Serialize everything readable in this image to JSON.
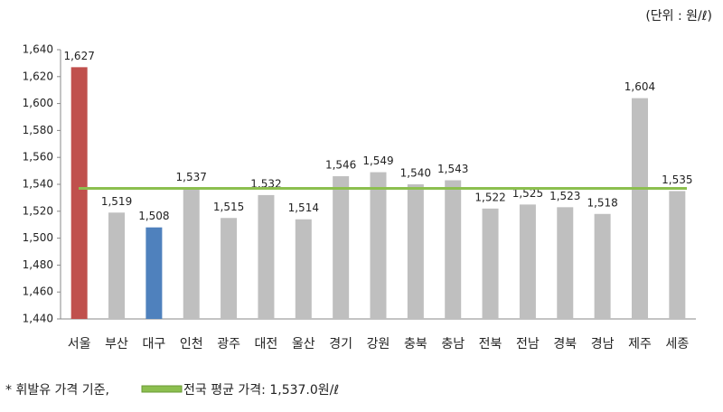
{
  "chart_data": {
    "type": "bar",
    "unit_note": "(단위 : 원/ℓ)",
    "categories": [
      "서울",
      "부산",
      "대구",
      "인천",
      "광주",
      "대전",
      "울산",
      "경기",
      "강원",
      "충북",
      "충남",
      "전북",
      "전남",
      "경북",
      "경남",
      "제주",
      "세종"
    ],
    "values": [
      1627,
      1519,
      1508,
      1537,
      1515,
      1532,
      1514,
      1546,
      1549,
      1540,
      1543,
      1522,
      1525,
      1523,
      1518,
      1604,
      1535
    ],
    "value_labels": [
      "1,627",
      "1,519",
      "1,508",
      "1,537",
      "1,515",
      "1,532",
      "1,514",
      "1,546",
      "1,549",
      "1,540",
      "1,543",
      "1,522",
      "1,525",
      "1,523",
      "1,518",
      "1,604",
      "1,535"
    ],
    "colors": [
      "#c0504d",
      "#bfbfbf",
      "#4f81bd",
      "#bfbfbf",
      "#bfbfbf",
      "#bfbfbf",
      "#bfbfbf",
      "#bfbfbf",
      "#bfbfbf",
      "#bfbfbf",
      "#bfbfbf",
      "#bfbfbf",
      "#bfbfbf",
      "#bfbfbf",
      "#bfbfbf",
      "#bfbfbf",
      "#bfbfbf"
    ],
    "ylim": [
      1440,
      1640
    ],
    "yticks": [
      {
        "value": 1440,
        "label": "1,440"
      },
      {
        "value": 1460,
        "label": "1,460"
      },
      {
        "value": 1480,
        "label": "1,480"
      },
      {
        "value": 1500,
        "label": "1,500"
      },
      {
        "value": 1520,
        "label": "1,520"
      },
      {
        "value": 1540,
        "label": "1,540"
      },
      {
        "value": 1560,
        "label": "1,560"
      },
      {
        "value": 1580,
        "label": "1,580"
      },
      {
        "value": 1600,
        "label": "1,600"
      },
      {
        "value": 1620,
        "label": "1,620"
      },
      {
        "value": 1640,
        "label": "1,640"
      }
    ],
    "average": {
      "value": 1537.0,
      "label": "전국 평균 가격: 1,537.0원/ℓ",
      "color": "#8cbf4f"
    },
    "footnote": "* 휘발유 가격 기준,"
  }
}
